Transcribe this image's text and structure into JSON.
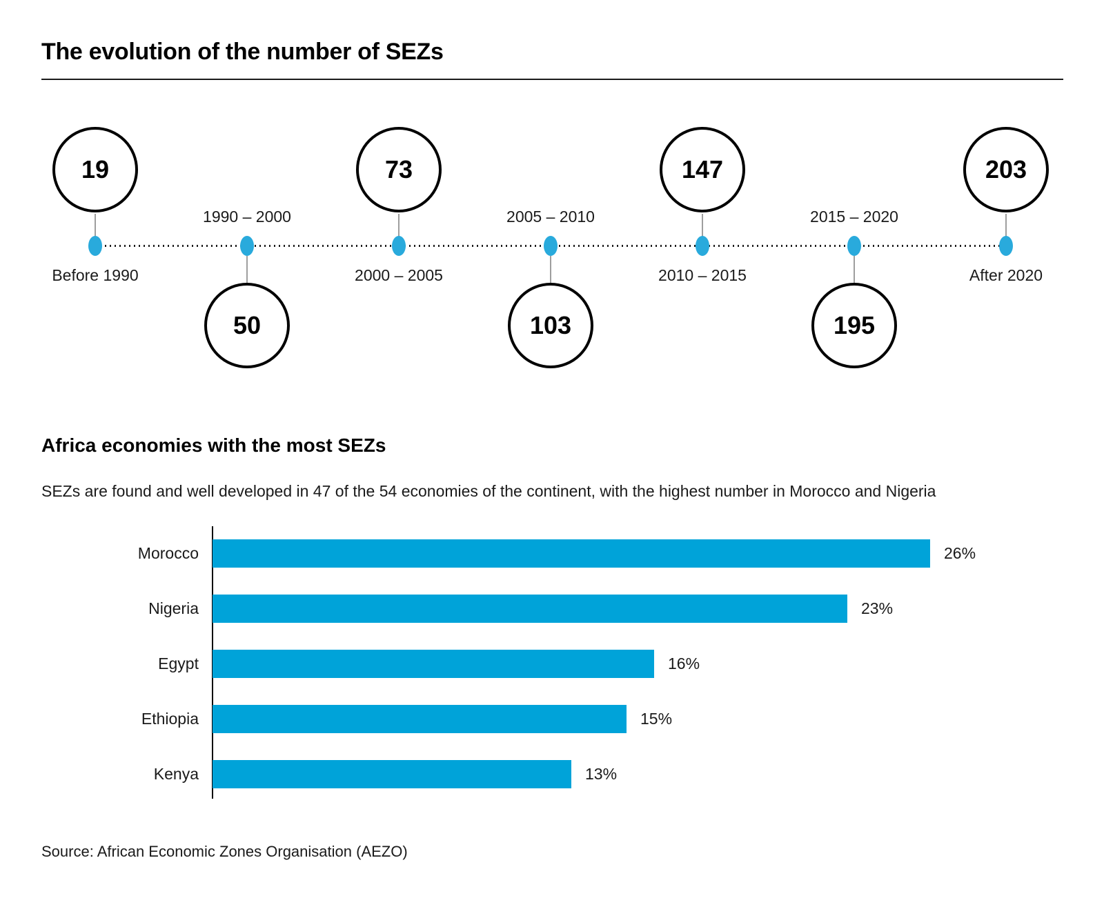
{
  "page": {
    "title": "The evolution of the number of SEZs",
    "source": "Source: African Economic Zones Organisation (AEZO)"
  },
  "section2": {
    "heading": "Africa economies with the most SEZs",
    "subtitle": "SEZs are found and well developed in 47 of the 54 economies of the continent, with the highest number in Morocco and Nigeria"
  },
  "colors": {
    "bar_blue": "#00a3d9",
    "dot_blue": "#29aadc",
    "circle_stroke": "#000000",
    "connector_gray": "#9e9e9e",
    "text": "#1a1a1a"
  },
  "chart_data": [
    {
      "type": "line",
      "subtype": "timeline",
      "title": "The evolution of the number of SEZs",
      "categories": [
        "Before 1990",
        "1990 – 2000",
        "2000 – 2005",
        "2005 – 2010",
        "2010 – 2015",
        "2015 – 2020",
        "After 2020"
      ],
      "values": [
        19,
        50,
        73,
        103,
        147,
        195,
        203
      ],
      "layout": {
        "circle_sides": [
          "above",
          "below",
          "above",
          "below",
          "above",
          "below",
          "above"
        ],
        "line_style": "dotted",
        "marker_color": "#29aadc"
      }
    },
    {
      "type": "bar",
      "orientation": "horizontal",
      "title": "Africa economies with the most SEZs",
      "categories": [
        "Morocco",
        "Nigeria",
        "Egypt",
        "Ethiopia",
        "Kenya"
      ],
      "values": [
        26,
        23,
        16,
        15,
        13
      ],
      "value_labels": [
        "26%",
        "23%",
        "16%",
        "15%",
        "13%"
      ],
      "xlabel": "",
      "ylabel": "",
      "xlim": [
        0,
        26
      ],
      "grid": false,
      "legend": false,
      "bar_color": "#00a3d9"
    }
  ]
}
